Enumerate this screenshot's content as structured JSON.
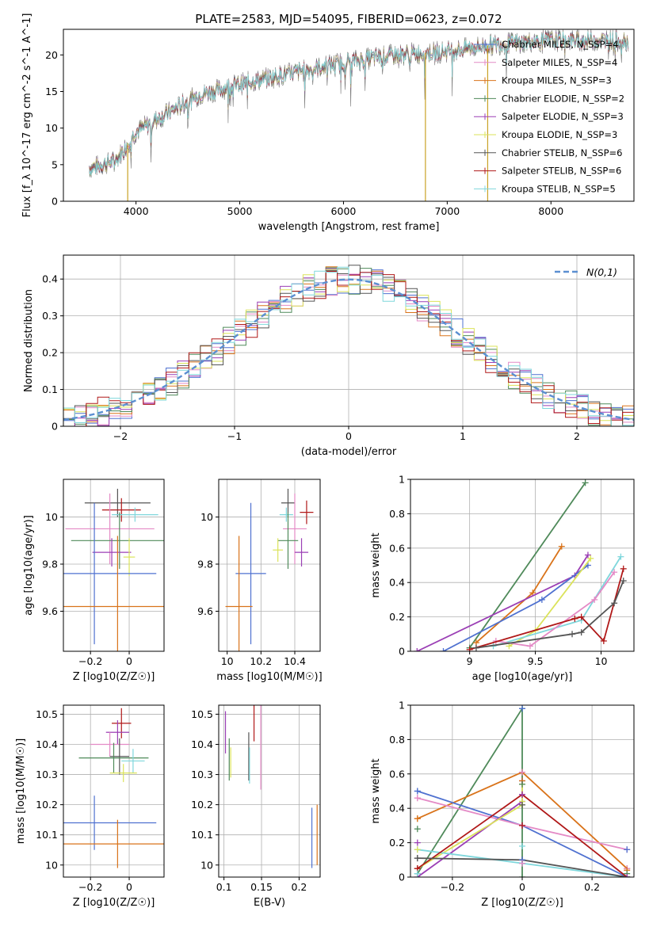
{
  "figure": {
    "title": "PLATE=2583, MJD=54095, FIBERID=0623, z=0.072"
  },
  "legend_entries": [
    {
      "label": "Chabrier MILES, N_SSP=4",
      "color": "#4f71d0"
    },
    {
      "label": "Salpeter MILES, N_SSP=4",
      "color": "#e48ac6"
    },
    {
      "label": "Kroupa MILES, N_SSP=3",
      "color": "#d9731a"
    },
    {
      "label": "Chabrier ELODIE, N_SSP=2",
      "color": "#4f8a5a"
    },
    {
      "label": "Salpeter ELODIE, N_SSP=3",
      "color": "#9b3fb5"
    },
    {
      "label": "Kroupa ELODIE, N_SSP=3",
      "color": "#dbe35a"
    },
    {
      "label": "Chabrier STELIB, N_SSP=6",
      "color": "#555555"
    },
    {
      "label": "Salpeter STELIB, N_SSP=6",
      "color": "#b01818"
    },
    {
      "label": "Kroupa STELIB, N_SSP=5",
      "color": "#7fd7dc"
    }
  ],
  "chart_data": [
    {
      "type": "line",
      "name": "spectrum",
      "xlabel": "wavelength [Angstrom, rest frame]",
      "ylabel": "Flux [f_λ 10^-17 erg cm^-2 s^-1 A^-1]",
      "xlim": [
        3300,
        8800
      ],
      "ylim": [
        0,
        23.5
      ],
      "xticks": [
        4000,
        5000,
        6000,
        7000,
        8000
      ],
      "yticks": [
        0,
        5,
        10,
        15,
        20
      ],
      "grid": false,
      "legend_position": "right",
      "trend": {
        "x": [
          3550,
          3800,
          4000,
          4300,
          4600,
          5000,
          5500,
          6000,
          6500,
          7000,
          7500,
          8000,
          8750
        ],
        "y": [
          4.5,
          5.5,
          9.5,
          12,
          14.5,
          16,
          17.5,
          19,
          20,
          20.5,
          21.5,
          22,
          22
        ]
      },
      "dropouts": [
        3920,
        6790,
        7390
      ]
    },
    {
      "type": "line",
      "name": "residual-histogram",
      "xlabel": "(data-model)/error",
      "ylabel": "Normed distribution",
      "xlim": [
        -2.5,
        2.5
      ],
      "ylim": [
        0,
        0.465
      ],
      "xticks": [
        -2,
        -1,
        0,
        1,
        2
      ],
      "yticks": [
        0.0,
        0.1,
        0.2,
        0.3,
        0.4
      ],
      "grid": true,
      "legend_position": "top-right",
      "gaussian_label": "N(0,1)",
      "bin_width": 0.1
    },
    {
      "type": "scatter",
      "name": "age-vs-Z",
      "xlabel": "Z [log10(Z/Z☉)]",
      "ylabel": "age  [log10(age/yr)]",
      "xlim": [
        -0.34,
        0.18
      ],
      "ylim": [
        9.43,
        10.16
      ],
      "xticks": [
        -0.2,
        0.0
      ],
      "yticks": [
        9.6,
        9.8,
        10.0
      ],
      "grid": true,
      "points": [
        {
          "x": -0.06,
          "xerr": 0.17,
          "y": 10.06,
          "yerr": 0.06,
          "color": "#555555"
        },
        {
          "x": -0.04,
          "xerr": 0.1,
          "y": 10.03,
          "yerr": 0.05,
          "color": "#b01818"
        },
        {
          "x": 0.03,
          "xerr": 0.12,
          "y": 10.01,
          "yerr": 0.03,
          "color": "#7fd7dc"
        },
        {
          "x": -0.1,
          "xerr": 0.23,
          "y": 9.95,
          "yerr": 0.15,
          "color": "#e48ac6"
        },
        {
          "x": -0.05,
          "xerr": 0.25,
          "y": 9.9,
          "yerr": 0.12,
          "color": "#4f8a5a"
        },
        {
          "x": -0.09,
          "xerr": 0.1,
          "y": 9.85,
          "yerr": 0.06,
          "color": "#9b3fb5"
        },
        {
          "x": 0.0,
          "xerr": 0.03,
          "y": 9.83,
          "yerr": 0.08,
          "color": "#dbe35a"
        },
        {
          "x": -0.18,
          "xerr": 0.32,
          "y": 9.76,
          "yerr": 0.3,
          "color": "#4f71d0"
        },
        {
          "x": -0.06,
          "xerr": 0.5,
          "y": 9.62,
          "yerr": 0.3,
          "color": "#d9731a"
        }
      ]
    },
    {
      "type": "scatter",
      "name": "age-vs-mass",
      "xlabel": "mass [log10(M/M☉)]",
      "ylabel": "",
      "xlim": [
        9.95,
        10.55
      ],
      "ylim": [
        9.43,
        10.16
      ],
      "xticks": [
        10.0,
        10.2,
        10.4
      ],
      "yticks": [
        9.6,
        9.8,
        10.0
      ],
      "grid": true,
      "points": [
        {
          "x": 10.36,
          "xerr": 0.04,
          "y": 10.06,
          "yerr": 0.06,
          "color": "#555555"
        },
        {
          "x": 10.47,
          "xerr": 0.04,
          "y": 10.02,
          "yerr": 0.05,
          "color": "#b01818"
        },
        {
          "x": 10.35,
          "xerr": 0.04,
          "y": 10.01,
          "yerr": 0.03,
          "color": "#7fd7dc"
        },
        {
          "x": 10.4,
          "xerr": 0.07,
          "y": 9.95,
          "yerr": 0.15,
          "color": "#e48ac6"
        },
        {
          "x": 10.36,
          "xerr": 0.06,
          "y": 9.9,
          "yerr": 0.12,
          "color": "#4f8a5a"
        },
        {
          "x": 10.44,
          "xerr": 0.04,
          "y": 9.85,
          "yerr": 0.06,
          "color": "#9b3fb5"
        },
        {
          "x": 10.3,
          "xerr": 0.03,
          "y": 9.86,
          "yerr": 0.05,
          "color": "#dbe35a"
        },
        {
          "x": 10.14,
          "xerr": 0.09,
          "y": 9.76,
          "yerr": 0.3,
          "color": "#4f71d0"
        },
        {
          "x": 10.07,
          "xerr": 0.08,
          "y": 9.62,
          "yerr": 0.3,
          "color": "#d9731a"
        }
      ]
    },
    {
      "type": "line",
      "name": "mass-weight-vs-age",
      "xlabel": "age  [log10(age/yr)]",
      "ylabel": "mass weight",
      "xlim": [
        8.55,
        10.25
      ],
      "ylim": [
        0,
        1
      ],
      "xticks": [
        9.0,
        9.5,
        10.0
      ],
      "yticks": [
        0.0,
        0.2,
        0.4,
        0.6,
        0.8,
        1.0
      ],
      "grid": true,
      "series": [
        {
          "color": "#4f8a5a",
          "x": [
            9.0,
            9.88
          ],
          "y": [
            0.02,
            0.98
          ]
        },
        {
          "color": "#d9731a",
          "x": [
            9.05,
            9.48,
            9.7
          ],
          "y": [
            0.05,
            0.34,
            0.61
          ]
        },
        {
          "color": "#9b3fb5",
          "x": [
            8.6,
            9.8,
            9.9
          ],
          "y": [
            0.0,
            0.44,
            0.56
          ]
        },
        {
          "color": "#4f71d0",
          "x": [
            8.8,
            9.55,
            9.9
          ],
          "y": [
            0.0,
            0.3,
            0.5
          ]
        },
        {
          "color": "#dbe35a",
          "x": [
            9.3,
            9.5,
            9.92
          ],
          "y": [
            0.03,
            0.12,
            0.54
          ]
        },
        {
          "color": "#7fd7dc",
          "x": [
            9.18,
            9.85,
            10.15
          ],
          "y": [
            0.03,
            0.18,
            0.55
          ]
        },
        {
          "color": "#e48ac6",
          "x": [
            9.2,
            9.46,
            9.95,
            10.1
          ],
          "y": [
            0.06,
            0.03,
            0.3,
            0.46
          ]
        },
        {
          "color": "#b01818",
          "x": [
            9.0,
            9.8,
            9.85,
            10.02,
            10.17
          ],
          "y": [
            0.01,
            0.19,
            0.2,
            0.06,
            0.48
          ]
        },
        {
          "color": "#555555",
          "x": [
            9.05,
            9.78,
            9.85,
            10.1,
            10.17
          ],
          "y": [
            0.02,
            0.1,
            0.11,
            0.28,
            0.41
          ]
        }
      ]
    },
    {
      "type": "scatter",
      "name": "mass-vs-Z",
      "xlabel": "Z [log10(Z/Z☉)]",
      "ylabel": "mass [log10(M/M☉)]",
      "xlim": [
        -0.34,
        0.18
      ],
      "ylim": [
        9.96,
        10.53
      ],
      "xticks": [
        -0.2,
        0.0
      ],
      "yticks": [
        10.0,
        10.1,
        10.2,
        10.3,
        10.4,
        10.5
      ],
      "grid": true,
      "points": [
        {
          "x": -0.04,
          "xerr": 0.05,
          "y": 10.47,
          "yerr": 0.05,
          "color": "#b01818"
        },
        {
          "x": -0.06,
          "xerr": 0.06,
          "y": 10.44,
          "yerr": 0.04,
          "color": "#9b3fb5"
        },
        {
          "x": -0.1,
          "xerr": 0.1,
          "y": 10.4,
          "yerr": 0.04,
          "color": "#e48ac6"
        },
        {
          "x": -0.05,
          "xerr": 0.05,
          "y": 10.36,
          "yerr": 0.06,
          "color": "#555555"
        },
        {
          "x": -0.08,
          "xerr": 0.18,
          "y": 10.355,
          "yerr": 0.05,
          "color": "#4f8a5a"
        },
        {
          "x": 0.02,
          "xerr": 0.06,
          "y": 10.345,
          "yerr": 0.04,
          "color": "#7fd7dc"
        },
        {
          "x": -0.03,
          "xerr": 0.07,
          "y": 10.305,
          "yerr": 0.03,
          "color": "#dbe35a"
        },
        {
          "x": -0.18,
          "xerr": 0.32,
          "y": 10.14,
          "yerr": 0.09,
          "color": "#4f71d0"
        },
        {
          "x": -0.06,
          "xerr": 0.45,
          "y": 10.07,
          "yerr": 0.08,
          "color": "#d9731a"
        }
      ]
    },
    {
      "type": "scatter",
      "name": "mass-vs-EBV",
      "xlabel": "E(B-V)",
      "ylabel": "",
      "xlim": [
        0.093,
        0.228
      ],
      "ylim": [
        9.96,
        10.53
      ],
      "xticks": [
        0.1,
        0.15,
        0.2
      ],
      "yticks": [
        10.0,
        10.1,
        10.2,
        10.3,
        10.4,
        10.5
      ],
      "grid": true,
      "points": [
        {
          "x": 0.102,
          "y": 10.44,
          "yerr": 0.07,
          "color": "#9b3fb5"
        },
        {
          "x": 0.107,
          "y": 10.35,
          "yerr": 0.07,
          "color": "#4f8a5a"
        },
        {
          "x": 0.109,
          "y": 10.34,
          "yerr": 0.05,
          "color": "#dbe35a"
        },
        {
          "x": 0.133,
          "y": 10.36,
          "yerr": 0.08,
          "color": "#555555"
        },
        {
          "x": 0.134,
          "y": 10.33,
          "yerr": 0.06,
          "color": "#7fd7dc"
        },
        {
          "x": 0.14,
          "y": 10.47,
          "yerr": 0.06,
          "color": "#b01818"
        },
        {
          "x": 0.149,
          "y": 10.39,
          "yerr": 0.14,
          "color": "#e48ac6"
        },
        {
          "x": 0.217,
          "y": 10.09,
          "yerr": 0.1,
          "color": "#4f71d0"
        },
        {
          "x": 0.224,
          "y": 10.1,
          "yerr": 0.1,
          "color": "#d9731a"
        }
      ]
    },
    {
      "type": "line",
      "name": "mass-weight-vs-Z",
      "xlabel": "Z [log10(Z/Z☉)]",
      "ylabel": "mass weight",
      "xlim": [
        -0.32,
        0.32
      ],
      "ylim": [
        0,
        1
      ],
      "xticks": [
        -0.2,
        0.0,
        0.2
      ],
      "yticks": [
        0.0,
        0.2,
        0.4,
        0.6,
        0.8,
        1.0
      ],
      "grid": true,
      "series": [
        {
          "color": "#4f8a5a",
          "x": [
            -0.3,
            0.0,
            0.0
          ],
          "y": [
            0.02,
            0.98,
            0.0
          ]
        },
        {
          "color": "#d9731a",
          "x": [
            -0.3,
            0.0,
            0.3
          ],
          "y": [
            0.34,
            0.61,
            0.05
          ]
        },
        {
          "color": "#4f71d0",
          "x": [
            -0.3,
            0.0,
            0.3
          ],
          "y": [
            0.5,
            0.3,
            0.0
          ]
        },
        {
          "color": "#e48ac6",
          "x": [
            -0.3,
            0.0,
            0.3
          ],
          "y": [
            0.46,
            0.3,
            0.16
          ]
        },
        {
          "color": "#9b3fb5",
          "x": [
            -0.3,
            0.0,
            0.0
          ],
          "y": [
            0.0,
            0.44,
            0.56
          ]
        },
        {
          "color": "#dbe35a",
          "x": [
            -0.3,
            0.0,
            0.0
          ],
          "y": [
            0.05,
            0.42,
            0.54
          ]
        },
        {
          "color": "#7fd7dc",
          "x": [
            -0.3,
            0.0,
            0.3
          ],
          "y": [
            0.16,
            0.08,
            0.0
          ]
        },
        {
          "color": "#b01818",
          "x": [
            -0.3,
            0.0,
            0.3
          ],
          "y": [
            0.05,
            0.48,
            0.0
          ]
        },
        {
          "color": "#555555",
          "x": [
            -0.3,
            0.0,
            0.3
          ],
          "y": [
            0.11,
            0.1,
            0.0
          ]
        }
      ],
      "markers_left": [
        0.5,
        0.46,
        0.34,
        0.28,
        0.2,
        0.16,
        0.11,
        0.05,
        0.02
      ],
      "markers_center": [
        0.98,
        0.61,
        0.56,
        0.54,
        0.48,
        0.44,
        0.42,
        0.3,
        0.18,
        0.1,
        0.08
      ],
      "markers_right": [
        0.16,
        0.05,
        0.04,
        0.02,
        0.0
      ]
    }
  ]
}
